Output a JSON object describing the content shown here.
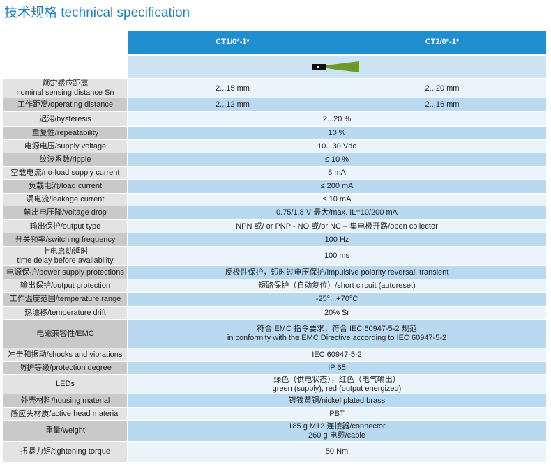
{
  "title": "技术规格 technical specification",
  "table": {
    "header": [
      "CT1/0*-1*",
      "CT2/0*-1*"
    ],
    "rows": [
      {
        "label": [
          "额定感应距离",
          "nominal sensing distance  Sn"
        ],
        "values": [
          [
            "2...15 mm"
          ],
          [
            "2...20 mm"
          ]
        ]
      },
      {
        "label": [
          "工作距离/operating distance"
        ],
        "values": [
          [
            "2...12 mm"
          ],
          [
            "2...16 mm"
          ]
        ]
      },
      {
        "label": [
          "迟滞/hysteresis"
        ],
        "values": [
          [
            "2...20 %"
          ]
        ]
      },
      {
        "label": [
          "重复性/repeatability"
        ],
        "values": [
          [
            "10 %"
          ]
        ]
      },
      {
        "label": [
          "电源电压/supply voltage"
        ],
        "values": [
          [
            "10...30 Vdc"
          ]
        ]
      },
      {
        "label": [
          "纹波系数/ripple"
        ],
        "values": [
          [
            "≤ 10 %"
          ]
        ]
      },
      {
        "label": [
          "空载电流/no-load supply current"
        ],
        "values": [
          [
            "8 mA"
          ]
        ]
      },
      {
        "label": [
          "负载电流/load current"
        ],
        "values": [
          [
            "≤ 200 mA"
          ]
        ]
      },
      {
        "label": [
          "漏电流/leakage current"
        ],
        "values": [
          [
            "≤ 10 mA"
          ]
        ]
      },
      {
        "label": [
          "输出电压降/voltage drop"
        ],
        "values": [
          [
            "0.75/1.8 V 最大/max. IL=10/200 mA"
          ]
        ]
      },
      {
        "label": [
          "输出保护/output type"
        ],
        "values": [
          [
            "NPN 或/ or PNP - NO 或/or NC – 集电极开路/open collector"
          ]
        ]
      },
      {
        "label": [
          "开关频率/switching frequency"
        ],
        "values": [
          [
            "100 Hz"
          ]
        ]
      },
      {
        "label": [
          "上电启动延时",
          "time delay before availability"
        ],
        "values": [
          [
            "100 ms"
          ]
        ]
      },
      {
        "label": [
          "电源保护/power supply protections"
        ],
        "values": [
          [
            "反极性保护，短时过电压保护/impulsive polarity reversal, transient"
          ]
        ]
      },
      {
        "label": [
          "输出保护/output protection"
        ],
        "values": [
          [
            "短路保护（自动复位）/short circuit (autoreset)"
          ]
        ]
      },
      {
        "label": [
          "工作温度范围/temperature range"
        ],
        "values": [
          [
            "-25°...+70°C"
          ]
        ]
      },
      {
        "label": [
          "热漂移/temperature drift"
        ],
        "values": [
          [
            "20% Sr"
          ]
        ]
      },
      {
        "label": [
          "电磁兼容性/EMC"
        ],
        "values": [
          [
            "符合 EMC 指令要求，符合 IEC 60947-5-2 规范",
            "in conformity with the EMC Directive according to IEC 60947-5-2"
          ]
        ]
      },
      {
        "label": [
          "冲击和振动/shocks and vibrations"
        ],
        "values": [
          [
            "IEC 60947-5-2"
          ]
        ]
      },
      {
        "label": [
          "防护等级/protection degree"
        ],
        "values": [
          [
            "IP 65"
          ]
        ]
      },
      {
        "label": [
          "LEDs"
        ],
        "values": [
          [
            "绿色（供电状态），红色（电气输出）",
            "green (supply), red (output energized)"
          ]
        ]
      },
      {
        "label": [
          "外壳材料/housing material"
        ],
        "values": [
          [
            "镀镍黄铜/nickel plated brass"
          ]
        ]
      },
      {
        "label": [
          "感应头材质/active head material"
        ],
        "values": [
          [
            "PBT"
          ]
        ]
      },
      {
        "label": [
          "重量/weight"
        ],
        "values": [
          [
            "185 g M12 连接器/connector",
            "260 g 电缆/cable"
          ]
        ]
      },
      {
        "label": [
          "扭紧力矩/tightening torque"
        ],
        "values": [
          [
            "50 Nm"
          ]
        ]
      }
    ]
  }
}
